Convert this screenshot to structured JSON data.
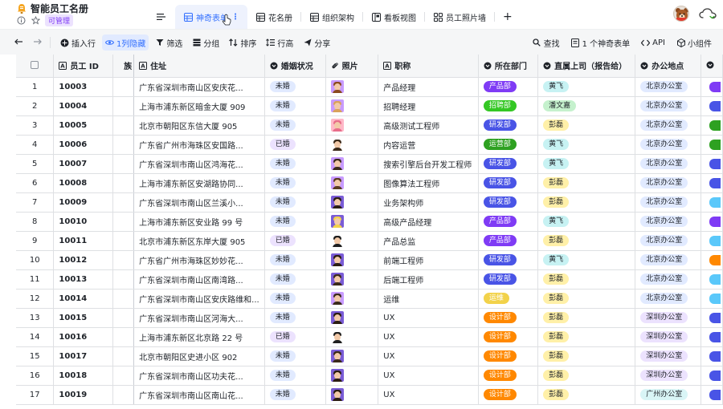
{
  "app": {
    "title": "智能员工名册",
    "badge": "可管理",
    "title_icon": "bell-doc-icon",
    "tabs": [
      {
        "label": "神奇表单",
        "icon": "grid-icon",
        "active": true
      },
      {
        "label": "花名册",
        "icon": "grid-icon",
        "active": false
      },
      {
        "label": "组织架构",
        "icon": "grid-icon",
        "active": false
      },
      {
        "label": "看板视图",
        "icon": "kanban-icon",
        "active": false
      },
      {
        "label": "员工照片墙",
        "icon": "gallery-icon",
        "active": false
      }
    ],
    "add_tab": "+"
  },
  "toolbar": {
    "insert_row": "插入行",
    "hidden_cols": "1列隐藏",
    "filter": "筛选",
    "group": "分组",
    "sort": "排序",
    "row_height": "行高",
    "share": "分享",
    "search": "查找",
    "form_count": "1 个神奇表单",
    "api": "API",
    "widgets": "小组件"
  },
  "columns": {
    "emp_id": "员工 ID",
    "partial": "族",
    "address": "住址",
    "marital": "婚姻状况",
    "photo": "照片",
    "title": "职称",
    "dept": "所在部门",
    "manager": "直属上司（报告给）",
    "office": "办公地点"
  },
  "colors": {
    "accent": "#3370ff",
    "dept": {
      "产品部": "#7f3bf5",
      "招聘部": "#34c724",
      "研发部": "#4954e6",
      "运营部": "#2ea121",
      "设计部": "#ff8800"
    },
    "manager": {
      "黄飞": "#c7f2f3",
      "潘文嘉": "#c5f1cd",
      "彭磊": "#fff0a8"
    },
    "marital": {
      "未婚": "#e1eaff",
      "已婚": "#ece2fe"
    },
    "office": {
      "北京办公室": "#e1eaff",
      "深圳办公室": "#ece2fe",
      "广州办公室": "#d9f5f6"
    }
  },
  "rows": [
    {
      "n": "1",
      "id": "10003",
      "addr": "广东省深圳市南山区安庆花...",
      "marital": "未婚",
      "title": "产品经理",
      "dept": "产品部",
      "mgr": "黄飞",
      "office": "北京办公室",
      "photo": "#c89bff",
      "hair": "#8a4a1f",
      "tail": "#7f3bf5"
    },
    {
      "n": "2",
      "id": "10004",
      "addr": "上海市浦东新区暗金大厦 909",
      "marital": "未婚",
      "title": "招聘经理",
      "dept": "招聘部",
      "mgr": "潘文嘉",
      "office": "北京办公室",
      "photo": "#c89bff",
      "hair": "#d9a25a",
      "tail": "#4954e6"
    },
    {
      "n": "3",
      "id": "10005",
      "addr": "北京市朝阳区东信大厦 905",
      "marital": "未婚",
      "title": "高级测试工程师",
      "dept": "研发部",
      "mgr": "彭磊",
      "office": "北京办公室",
      "photo": "#ffb8c8",
      "hair": "#e86d8a",
      "tail": "#2ea121"
    },
    {
      "n": "4",
      "id": "10006",
      "addr": "广东省广州市海珠区安国路...",
      "marital": "已婚",
      "title": "内容运营",
      "dept": "运营部",
      "mgr": "黄飞",
      "office": "北京办公室",
      "photo": "#ffffff",
      "hair": "#3b2a1a",
      "tail": "#2ea121"
    },
    {
      "n": "5",
      "id": "10007",
      "addr": "广东省深圳市南山区鸿海花...",
      "marital": "未婚",
      "title": "搜索引擎后台开发工程师",
      "dept": "研发部",
      "mgr": "黄飞",
      "office": "北京办公室",
      "photo": "#c89bff",
      "hair": "#3b2a1a",
      "tail": "#4954e6"
    },
    {
      "n": "6",
      "id": "10008",
      "addr": "上海市浦东新区安湖路协同...",
      "marital": "未婚",
      "title": "图像算法工程师",
      "dept": "研发部",
      "mgr": "彭磊",
      "office": "北京办公室",
      "photo": "#c89bff",
      "hair": "#5a3a20",
      "tail": "#4954e6"
    },
    {
      "n": "7",
      "id": "10009",
      "addr": "广东省深圳市南山区兰溪小...",
      "marital": "未婚",
      "title": "业务架构师",
      "dept": "研发部",
      "mgr": "彭磊",
      "office": "北京办公室",
      "photo": "#7a5cd6",
      "hair": "#2b1d12",
      "tail": "#5ac8fa"
    },
    {
      "n": "8",
      "id": "10010",
      "addr": "上海市浦东新区安业路 99 号",
      "marital": "未婚",
      "title": "高级产品经理",
      "dept": "产品部",
      "mgr": "黄飞",
      "office": "北京办公室",
      "photo": "#7a5cd6",
      "hair": "#f2d24a",
      "tail": "#7f3bf5"
    },
    {
      "n": "9",
      "id": "10011",
      "addr": "北京市浦东新区东岸大厦 905",
      "marital": "已婚",
      "title": "产品总监",
      "dept": "产品部",
      "mgr": "彭磊",
      "office": "北京办公室",
      "photo": "#ffffff",
      "hair": "#1f1f1f",
      "tail": "#5ac8fa"
    },
    {
      "n": "10",
      "id": "10012",
      "addr": "广东省广州市海珠区妙妙花...",
      "marital": "未婚",
      "title": "前端工程师",
      "dept": "研发部",
      "mgr": "黄飞",
      "office": "北京办公室",
      "photo": "#7a5cd6",
      "hair": "#2b1d12",
      "tail": "#ff8800"
    },
    {
      "n": "11",
      "id": "10013",
      "addr": "广东省深圳市南山区南湾路...",
      "marital": "未婚",
      "title": "后端工程师",
      "dept": "研发部",
      "mgr": "彭磊",
      "office": "北京办公室",
      "photo": "#7a5cd6",
      "hair": "#3b2a1a",
      "tail": "#5ac8fa"
    },
    {
      "n": "12",
      "id": "10014",
      "addr": "广东省深圳市南山区安庆路维和...",
      "marital": "未婚",
      "title": "运维",
      "dept": "运维",
      "mgr": "彭磊",
      "office": "北京办公室",
      "photo": "#c89bff",
      "hair": "#3b2a1a",
      "tail": "#5ac8fa"
    },
    {
      "n": "13",
      "id": "10015",
      "addr": "广东省深圳市南山区河海大...",
      "marital": "未婚",
      "title": "UX",
      "dept": "设计部",
      "mgr": "彭磊",
      "office": "深圳办公室",
      "photo": "#7a5cd6",
      "hair": "#2b1d12",
      "tail": "#4954e6"
    },
    {
      "n": "14",
      "id": "10016",
      "addr": "上海市浦东新区北京路 22 号",
      "marital": "已婚",
      "title": "UX",
      "dept": "设计部",
      "mgr": "彭磊",
      "office": "深圳办公室",
      "photo": "#ffffff",
      "hair": "#1f1f1f",
      "tail": "#4954e6"
    },
    {
      "n": "15",
      "id": "10017",
      "addr": "北京市朝阳区史进小区 902",
      "marital": "未婚",
      "title": "UX",
      "dept": "设计部",
      "mgr": "彭磊",
      "office": "深圳办公室",
      "photo": "#7a5cd6",
      "hair": "#3b2a1a",
      "tail": "#4954e6"
    },
    {
      "n": "16",
      "id": "10018",
      "addr": "广东省深圳市南山区功夫花...",
      "marital": "未婚",
      "title": "UX",
      "dept": "设计部",
      "mgr": "彭磊",
      "office": "深圳办公室",
      "photo": "#7a5cd6",
      "hair": "#2b1d12",
      "tail": "#4954e6"
    },
    {
      "n": "17",
      "id": "10019",
      "addr": "广东省深圳市南山区南山花...",
      "marital": "未婚",
      "title": "UX",
      "dept": "设计部",
      "mgr": "彭磊",
      "office": "广州办公室",
      "photo": "#7a5cd6",
      "hair": "#2b1d12",
      "tail": "#4954e6"
    }
  ]
}
